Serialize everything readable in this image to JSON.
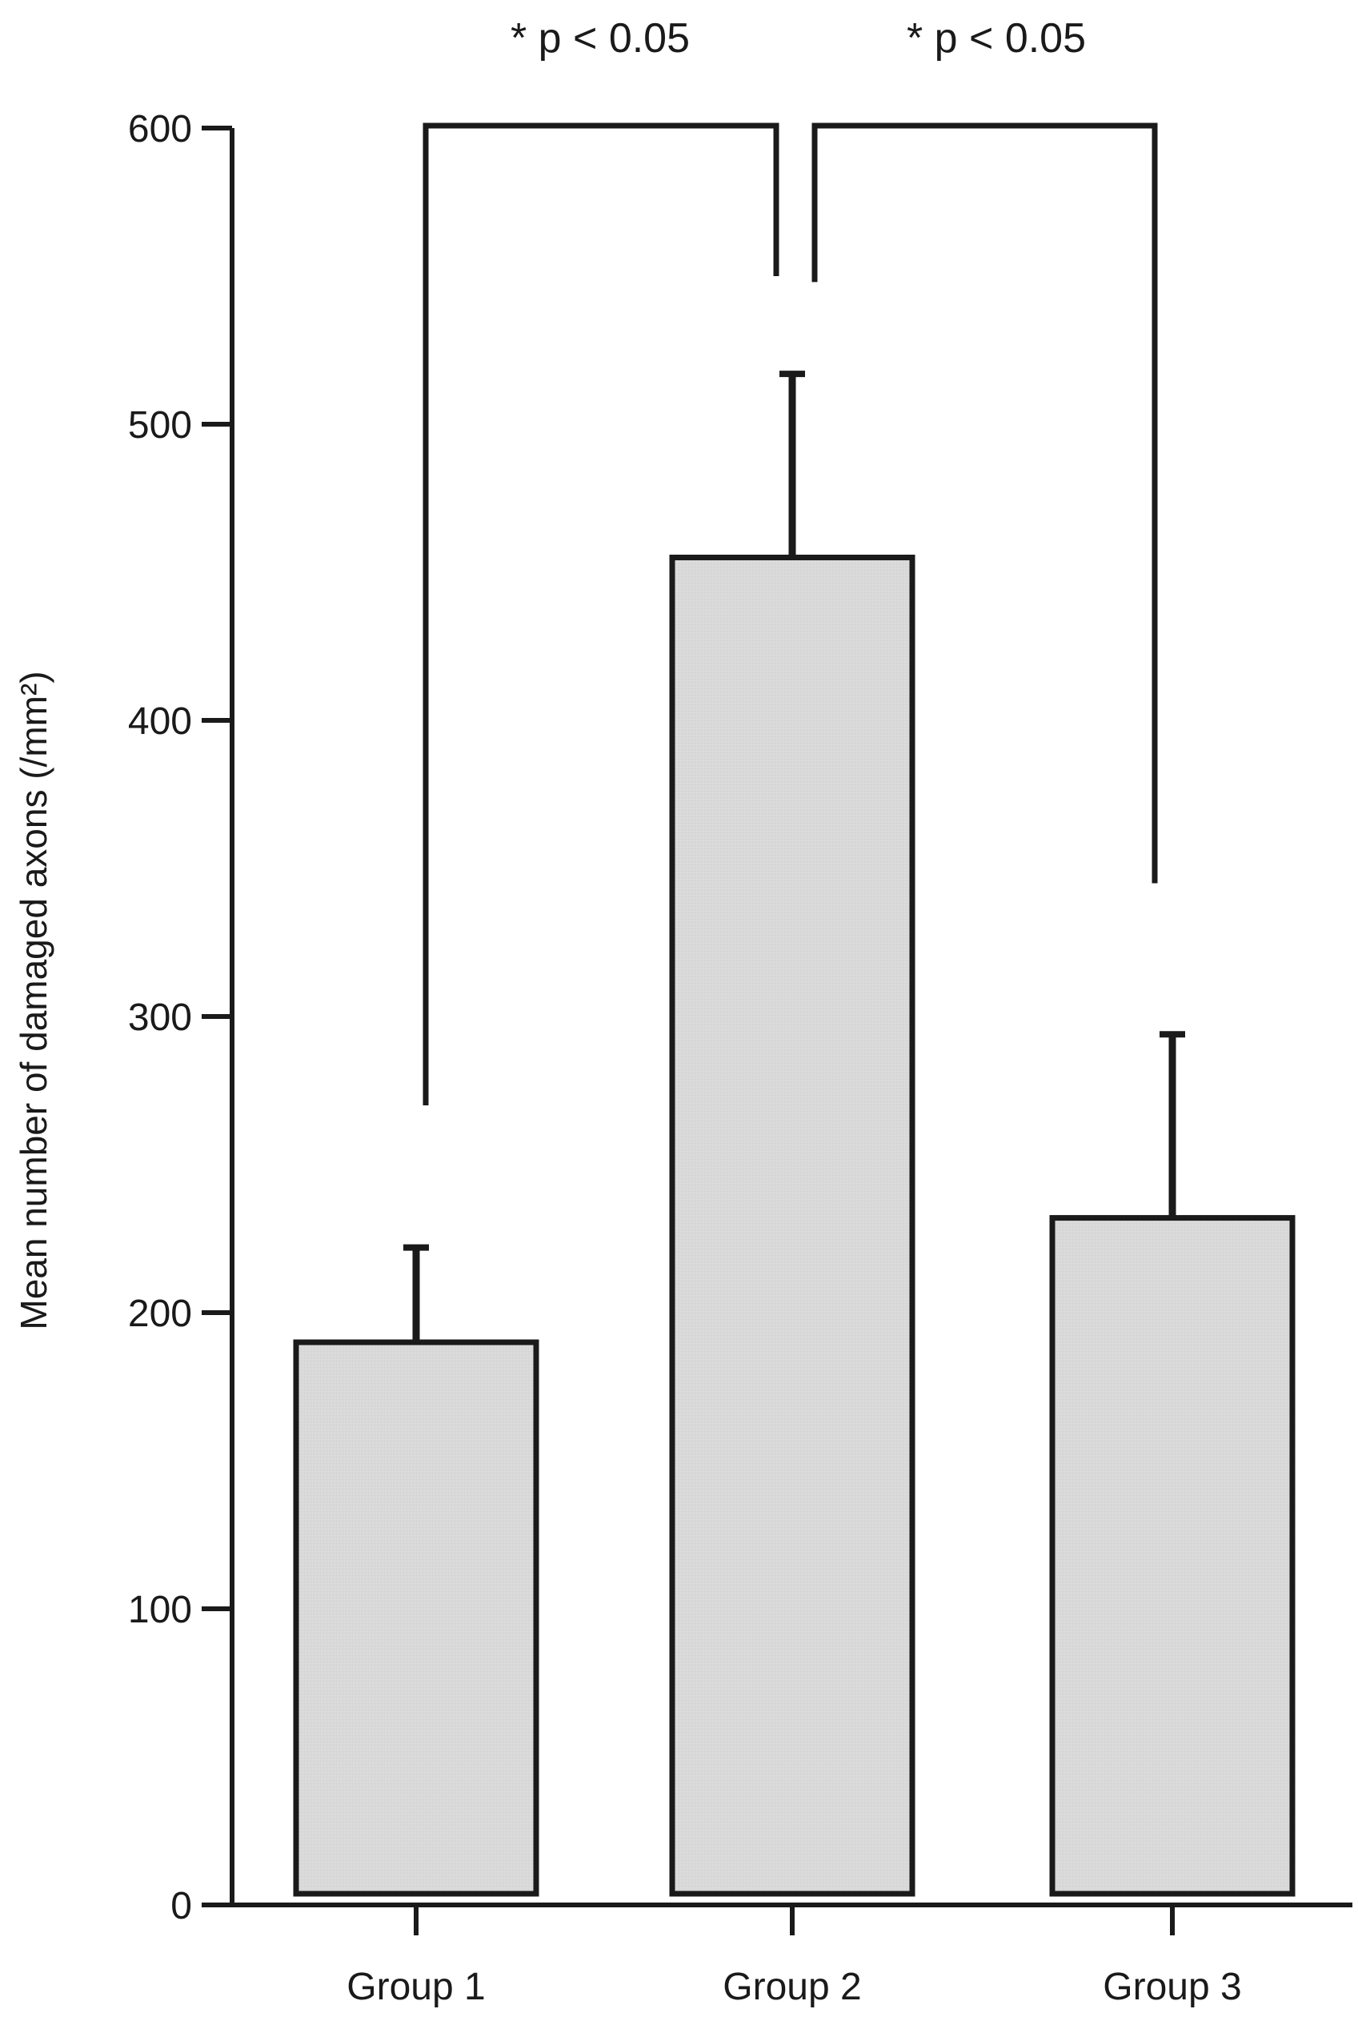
{
  "chart_data": {
    "type": "bar",
    "ylabel": "Mean number of damaged axons (/mm²)",
    "xlabel": "",
    "categories": [
      "Group 1",
      "Group 2",
      "Group 3"
    ],
    "values": [
      190,
      455,
      232
    ],
    "error_upper": [
      222,
      517,
      294
    ],
    "ylim": [
      0,
      600
    ],
    "yticks": [
      0,
      100,
      200,
      300,
      400,
      500,
      600
    ],
    "grid": false,
    "colors": {
      "bar_fill": "#d9d9d9",
      "stroke": "#1a1a1a"
    },
    "significance": [
      {
        "label": "* p < 0.05",
        "from": "Group 1",
        "to": "Group 2",
        "left_end": 270,
        "right_end": 550,
        "top": 600
      },
      {
        "label": "* p < 0.05",
        "from": "Group 2",
        "to": "Group 3",
        "left_end": 548,
        "right_end": 345,
        "top": 600
      }
    ]
  }
}
